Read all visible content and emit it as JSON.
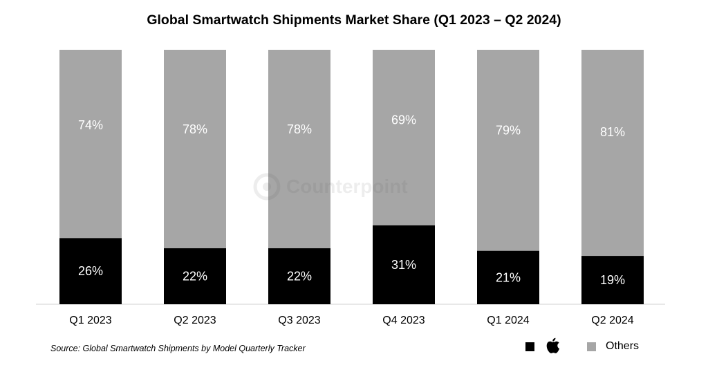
{
  "chart_data": {
    "type": "bar",
    "stacked": true,
    "title": "Global Smartwatch Shipments Market Share (Q1 2023 – Q2 2024)",
    "categories": [
      "Q1 2023",
      "Q2 2023",
      "Q3 2023",
      "Q4 2023",
      "Q1 2024",
      "Q2 2024"
    ],
    "series": [
      {
        "name": "Apple",
        "color": "#000000",
        "label_color": "#ffffff",
        "values": [
          26,
          22,
          22,
          31,
          21,
          19
        ]
      },
      {
        "name": "Others",
        "color": "#a6a6a6",
        "label_color": "#ffffff",
        "values": [
          74,
          78,
          78,
          69,
          79,
          81
        ]
      }
    ],
    "ylim": [
      0,
      100
    ],
    "value_suffix": "%",
    "grid": false,
    "legend_position": "bottom-right"
  },
  "source": "Source: Global Smartwatch Shipments by Model Quarterly Tracker",
  "legend": {
    "apple_icon": "apple-logo-icon",
    "others_label": "Others"
  },
  "watermark": {
    "text": "Counterpoint",
    "icon": "counterpoint-logo-icon"
  }
}
